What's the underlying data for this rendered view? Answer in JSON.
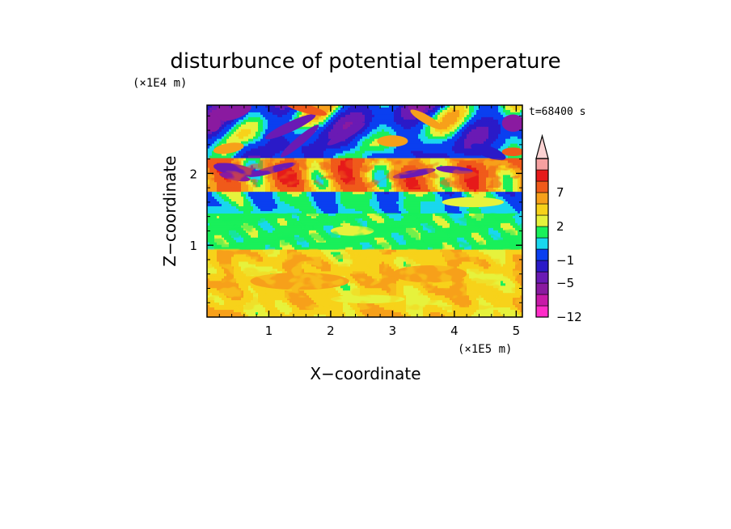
{
  "chart_data": {
    "type": "heatmap",
    "title": "disturbunce of potential temperature",
    "xlabel": "X−coordinate",
    "ylabel": "Z−coordinate",
    "x_unit": "(×1E5 m)",
    "y_unit": "(×1E4 m)",
    "time_label": "t=68400 s",
    "xlim": [
      0,
      5.1
    ],
    "ylim": [
      0,
      2.95
    ],
    "x_ticks": [
      1,
      2,
      3,
      4,
      5
    ],
    "y_ticks": [
      1,
      2
    ],
    "x_tick_labels": [
      "1",
      "2",
      "3",
      "4",
      "5"
    ],
    "y_tick_labels": [
      "1",
      "2"
    ],
    "colorbar": {
      "levels": [
        -12,
        -9,
        -7,
        -5,
        -3,
        -1,
        0,
        1,
        2,
        3,
        5,
        7,
        9,
        12
      ],
      "colors": [
        "#ff2dc8",
        "#c81aa8",
        "#8a1aa0",
        "#6a1ab4",
        "#2a1ac8",
        "#0a3ff0",
        "#19d7ee",
        "#19f05a",
        "#e6f23c",
        "#f7d21a",
        "#f7a01a",
        "#f05a1a",
        "#e61a1a",
        "#f5a0a0",
        "#fbd2d2"
      ],
      "tick_values": [
        7,
        2,
        -1,
        -5,
        -12
      ],
      "tick_labels": [
        "7",
        "2",
        "−1",
        "−5",
        "−12"
      ],
      "extend_max": true
    },
    "field_description_bands": [
      {
        "z": [
          0.0,
          0.95
        ],
        "value": 2.5
      },
      {
        "z": [
          0.95,
          1.45
        ],
        "value": 0.5
      },
      {
        "z": [
          1.45,
          1.75
        ],
        "value": -0.5
      },
      {
        "z": [
          1.75,
          2.2
        ],
        "value": 4
      },
      {
        "z": [
          2.2,
          2.95
        ],
        "value": -2
      }
    ]
  }
}
